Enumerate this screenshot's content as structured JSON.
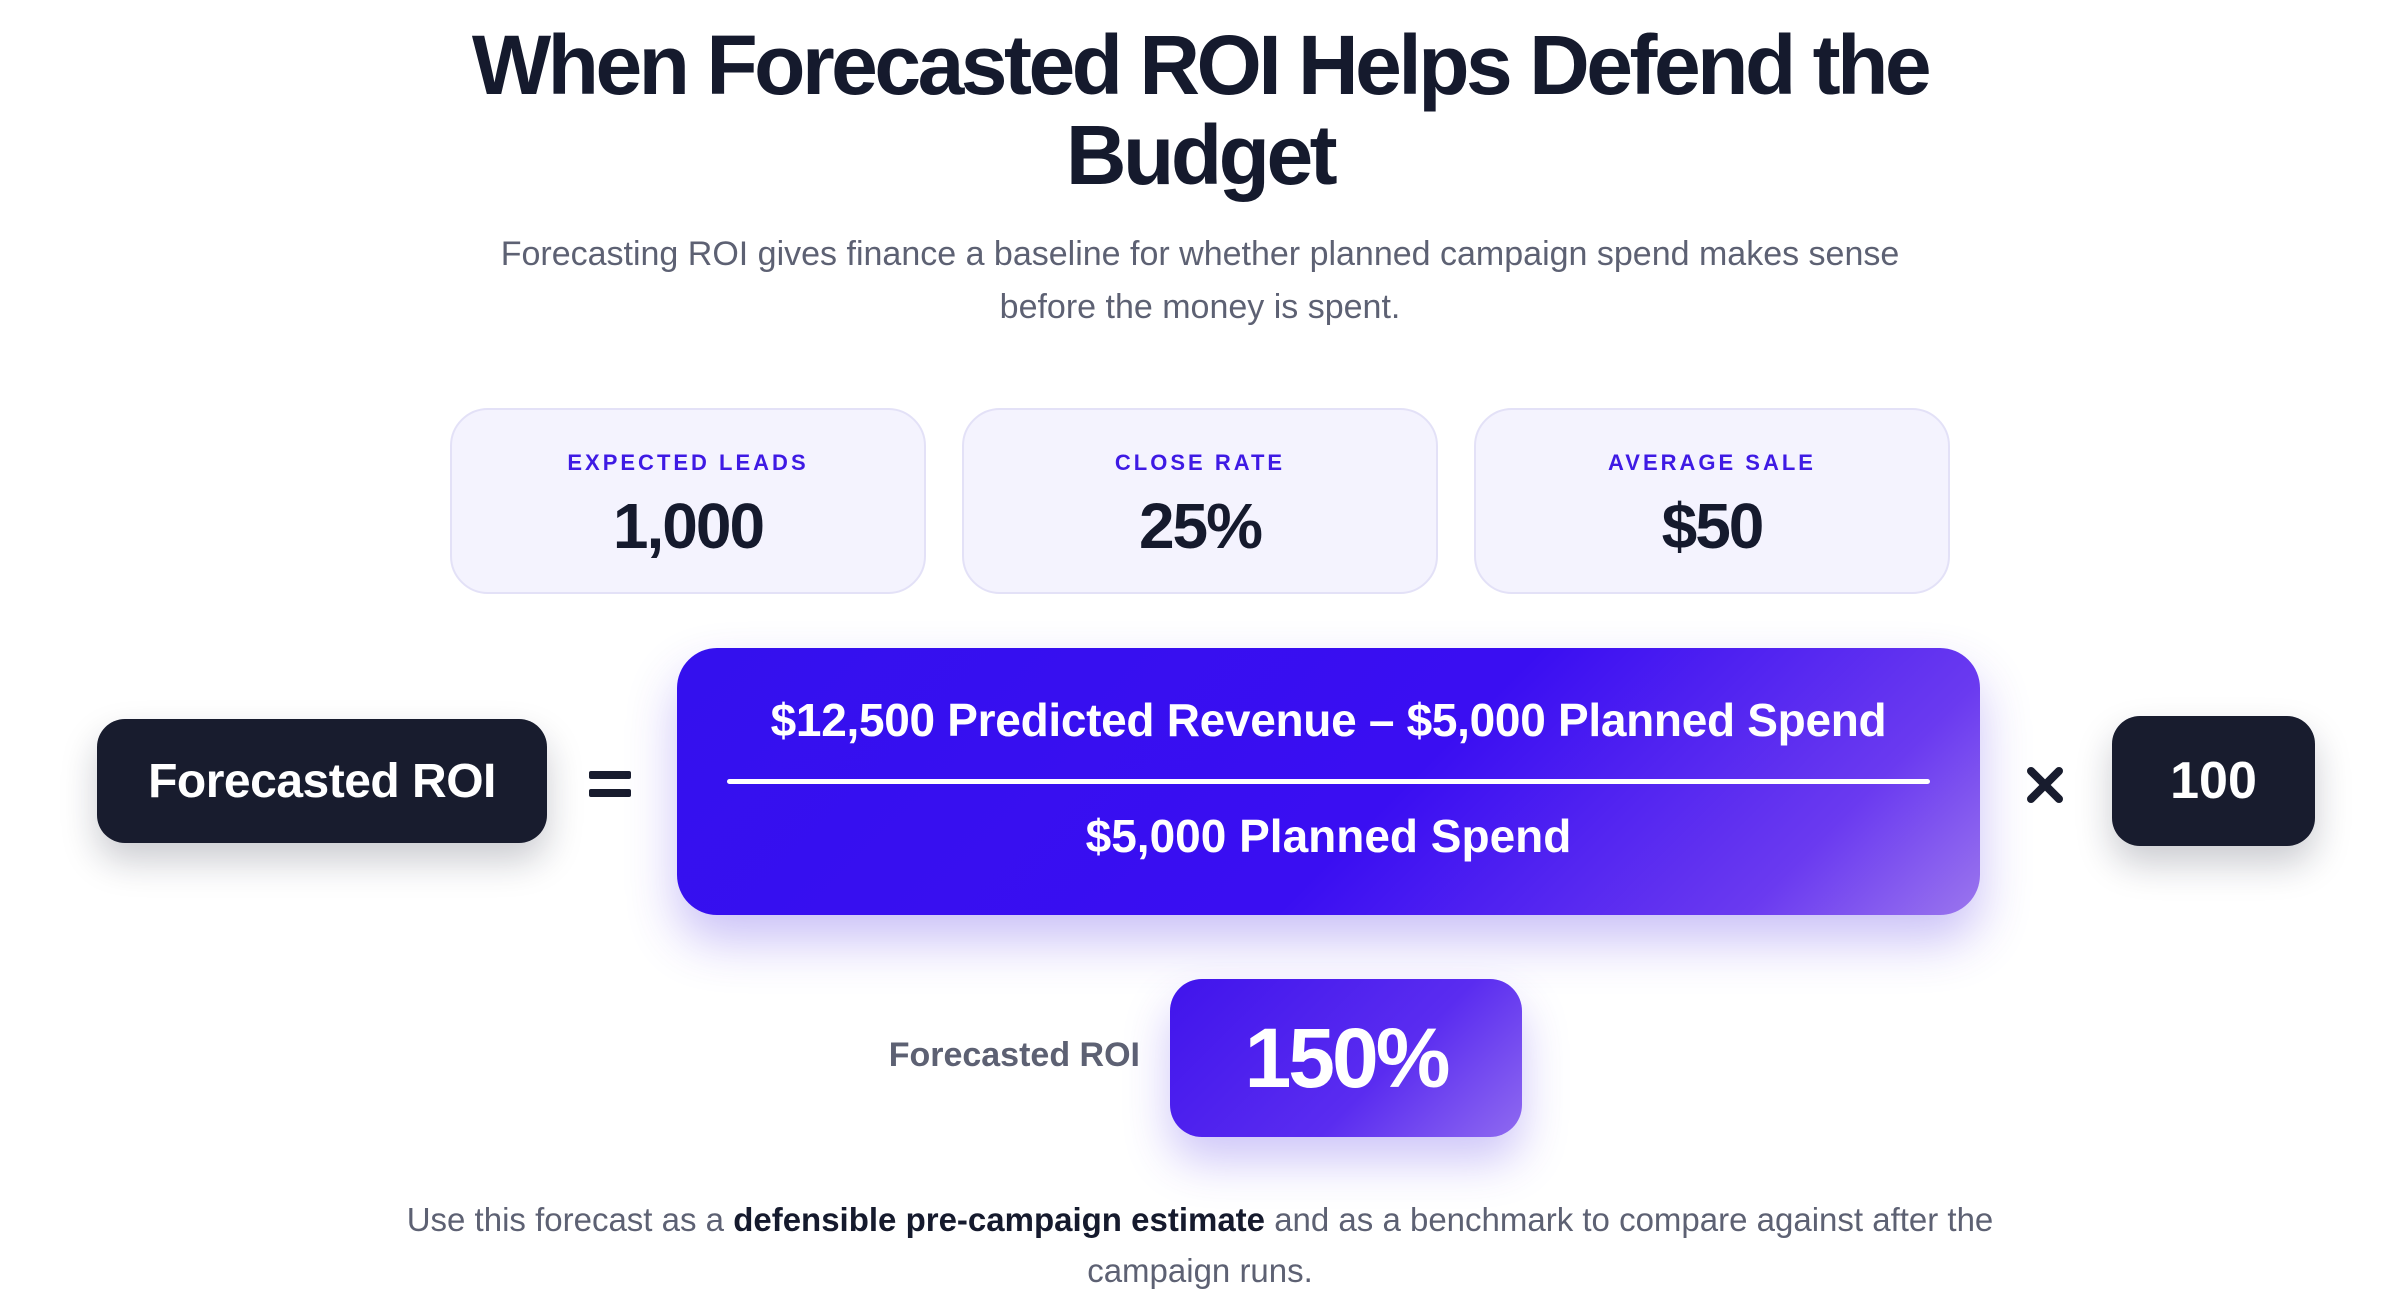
{
  "title": "When Forecasted ROI Helps Defend the Budget",
  "subtitle": "Forecasting ROI gives finance a baseline for whether planned campaign spend makes sense before the money is spent.",
  "stats": [
    {
      "label": "EXPECTED LEADS",
      "value": "1,000"
    },
    {
      "label": "CLOSE RATE",
      "value": "25%"
    },
    {
      "label": "AVERAGE SALE",
      "value": "$50"
    }
  ],
  "formula": {
    "lhs": "Forecasted ROI",
    "numerator": "$12,500 Predicted Revenue – $5,000 Planned Spend",
    "denominator": "$5,000 Planned Spend",
    "multiplier": "100",
    "equals_symbol": "equals-icon",
    "times_symbol": "multiply-icon"
  },
  "result": {
    "label": "Forecasted ROI",
    "value": "150%"
  },
  "footnote": {
    "before": "Use this forecast as a ",
    "emphasis": "defensible pre-campaign estimate",
    "after": " and as a benchmark to compare against after the campaign runs."
  },
  "colors": {
    "accent": "#3a0ef2",
    "dark": "#181c2e",
    "card_bg": "#f4f3fe",
    "muted_text": "#5d6173"
  }
}
